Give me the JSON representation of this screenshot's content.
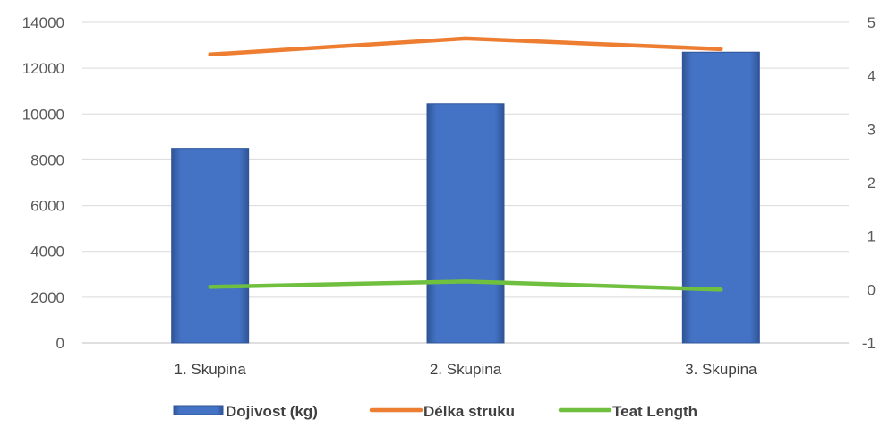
{
  "chart_data": {
    "type": "bar",
    "categories": [
      "1. Skupina",
      "2. Skupina",
      "3. Skupina"
    ],
    "series": [
      {
        "name": "Dojivost (kg)",
        "type": "bar",
        "axis": "left",
        "color": "#4472C4",
        "values": [
          8500,
          10450,
          12700
        ]
      },
      {
        "name": "Délka struku",
        "type": "line",
        "axis": "right",
        "color": "#ED7D31",
        "values": [
          4.4,
          4.7,
          4.5
        ]
      },
      {
        "name": "Teat Length",
        "type": "line",
        "axis": "right",
        "color": "#70C040",
        "values": [
          0.05,
          0.15,
          0.0
        ]
      }
    ],
    "y_left": {
      "ylim": [
        0,
        14000
      ],
      "ticks": [
        "0",
        "2000",
        "4000",
        "6000",
        "8000",
        "10000",
        "12000",
        "14000"
      ]
    },
    "y_right": {
      "ylim": [
        -1,
        5
      ],
      "ticks": [
        "-1",
        "0",
        "1",
        "2",
        "3",
        "4",
        "5"
      ]
    },
    "grid": true,
    "legend_position": "bottom"
  }
}
